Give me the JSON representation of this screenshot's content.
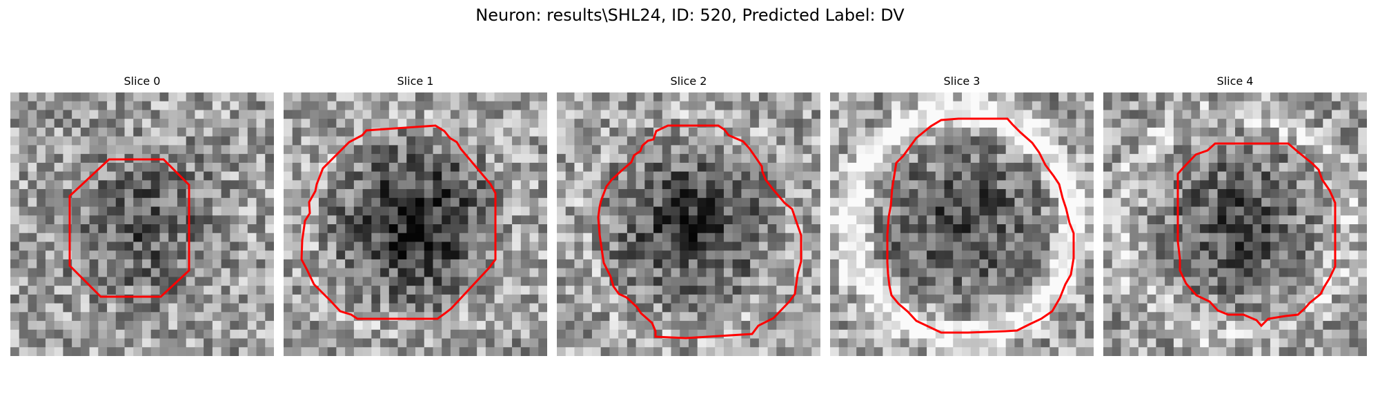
{
  "figure": {
    "title": "Neuron: results\\SHL24, ID: 520, Predicted Label: DV"
  },
  "contour_color": "#ff0000",
  "panels": [
    {
      "title": "Slice 0",
      "dark_blob": 0.3,
      "bright_ring": 0.0
    },
    {
      "title": "Slice 1",
      "dark_blob": 0.55,
      "bright_ring": 0.05
    },
    {
      "title": "Slice 2",
      "dark_blob": 0.45,
      "bright_ring": 0.05
    },
    {
      "title": "Slice 3",
      "dark_blob": 0.4,
      "bright_ring": 0.45
    },
    {
      "title": "Slice 4",
      "dark_blob": 0.35,
      "bright_ring": 0.15
    }
  ]
}
